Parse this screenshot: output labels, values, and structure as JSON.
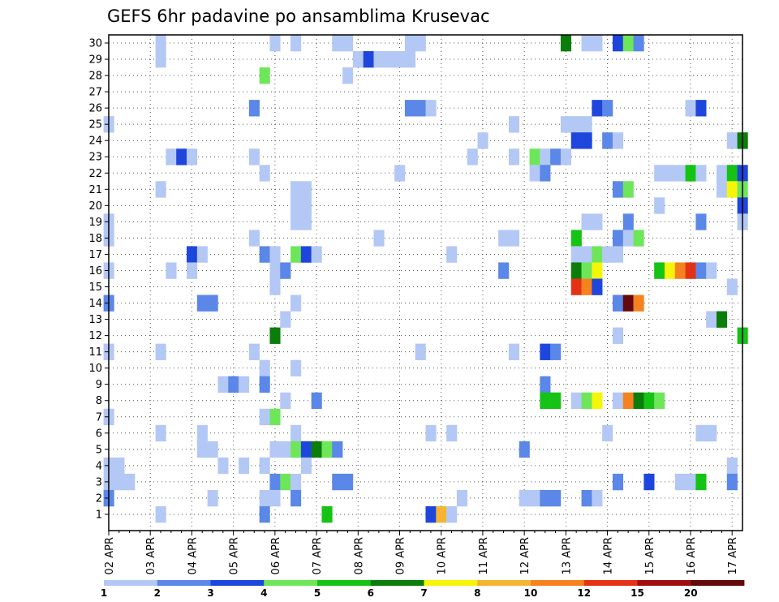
{
  "chart_data": {
    "type": "heatmap",
    "title": "GEFS 6hr padavine po ansamblima Krusevac",
    "xlabel": "",
    "ylabel": "",
    "x_tick_labels": [
      "02 APR",
      "03 APR",
      "04 APR",
      "05 APR",
      "06 APR",
      "07 APR",
      "08 APR",
      "09 APR",
      "10 APR",
      "11 APR",
      "12 APR",
      "13 APR",
      "14 APR",
      "15 APR",
      "16 APR",
      "17 APR"
    ],
    "y_tick_labels": [
      "1",
      "2",
      "3",
      "4",
      "5",
      "6",
      "7",
      "8",
      "9",
      "10",
      "11",
      "12",
      "13",
      "14",
      "15",
      "16",
      "17",
      "18",
      "19",
      "20",
      "21",
      "22",
      "23",
      "24",
      "25",
      "26",
      "27",
      "28",
      "29",
      "30"
    ],
    "time_steps_per_day": 4,
    "xlim": [
      0,
      61
    ],
    "ylim": [
      0,
      30
    ],
    "grid": true,
    "legend": {
      "position": "bottom",
      "labels": [
        "1",
        "2",
        "3",
        "4",
        "5",
        "6",
        "7",
        "8",
        "10",
        "12",
        "15",
        "20"
      ],
      "colors": [
        "#b4c8f5",
        "#5a87e8",
        "#1e46dc",
        "#6ee65a",
        "#14c314",
        "#0a7d0a",
        "#f5f50a",
        "#f5b432",
        "#f5821e",
        "#e63214",
        "#a00f0f",
        "#640a0a"
      ]
    },
    "cells": [
      {
        "t": 5,
        "m": 30,
        "v": 1
      },
      {
        "t": 16,
        "m": 30,
        "v": 1
      },
      {
        "t": 18,
        "m": 30,
        "v": 1
      },
      {
        "t": 22,
        "m": 30,
        "v": 1
      },
      {
        "t": 23,
        "m": 30,
        "v": 1
      },
      {
        "t": 29,
        "m": 30,
        "v": 1
      },
      {
        "t": 30,
        "m": 30,
        "v": 1
      },
      {
        "t": 44,
        "m": 30,
        "v": 6
      },
      {
        "t": 46,
        "m": 30,
        "v": 1
      },
      {
        "t": 47,
        "m": 30,
        "v": 1
      },
      {
        "t": 49,
        "m": 30,
        "v": 3
      },
      {
        "t": 50,
        "m": 30,
        "v": 4
      },
      {
        "t": 51,
        "m": 30,
        "v": 2
      },
      {
        "t": 5,
        "m": 29,
        "v": 1
      },
      {
        "t": 24,
        "m": 29,
        "v": 1
      },
      {
        "t": 25,
        "m": 29,
        "v": 3
      },
      {
        "t": 26,
        "m": 29,
        "v": 1
      },
      {
        "t": 27,
        "m": 29,
        "v": 1
      },
      {
        "t": 28,
        "m": 29,
        "v": 1
      },
      {
        "t": 29,
        "m": 29,
        "v": 1
      },
      {
        "t": 15,
        "m": 28,
        "v": 4
      },
      {
        "t": 23,
        "m": 28,
        "v": 1
      },
      {
        "t": 14,
        "m": 26,
        "v": 2
      },
      {
        "t": 29,
        "m": 26,
        "v": 2
      },
      {
        "t": 30,
        "m": 26,
        "v": 2
      },
      {
        "t": 31,
        "m": 26,
        "v": 1
      },
      {
        "t": 47,
        "m": 26,
        "v": 3
      },
      {
        "t": 48,
        "m": 26,
        "v": 2
      },
      {
        "t": 56,
        "m": 26,
        "v": 1
      },
      {
        "t": 57,
        "m": 26,
        "v": 3
      },
      {
        "t": 0,
        "m": 25,
        "v": 1
      },
      {
        "t": 39,
        "m": 25,
        "v": 1
      },
      {
        "t": 44,
        "m": 25,
        "v": 1
      },
      {
        "t": 45,
        "m": 25,
        "v": 1
      },
      {
        "t": 46,
        "m": 25,
        "v": 1
      },
      {
        "t": 36,
        "m": 24,
        "v": 1
      },
      {
        "t": 45,
        "m": 24,
        "v": 3
      },
      {
        "t": 46,
        "m": 24,
        "v": 3
      },
      {
        "t": 48,
        "m": 24,
        "v": 2
      },
      {
        "t": 49,
        "m": 24,
        "v": 1
      },
      {
        "t": 60,
        "m": 24,
        "v": 1
      },
      {
        "t": 61,
        "m": 24,
        "v": 6
      },
      {
        "t": 6,
        "m": 23,
        "v": 1
      },
      {
        "t": 7,
        "m": 23,
        "v": 3
      },
      {
        "t": 8,
        "m": 23,
        "v": 1
      },
      {
        "t": 14,
        "m": 23,
        "v": 1
      },
      {
        "t": 35,
        "m": 23,
        "v": 1
      },
      {
        "t": 39,
        "m": 23,
        "v": 1
      },
      {
        "t": 41,
        "m": 23,
        "v": 4
      },
      {
        "t": 42,
        "m": 23,
        "v": 1
      },
      {
        "t": 43,
        "m": 23,
        "v": 2
      },
      {
        "t": 44,
        "m": 23,
        "v": 1
      },
      {
        "t": 15,
        "m": 22,
        "v": 1
      },
      {
        "t": 28,
        "m": 22,
        "v": 1
      },
      {
        "t": 41,
        "m": 22,
        "v": 1
      },
      {
        "t": 42,
        "m": 22,
        "v": 2
      },
      {
        "t": 53,
        "m": 22,
        "v": 1
      },
      {
        "t": 54,
        "m": 22,
        "v": 1
      },
      {
        "t": 55,
        "m": 22,
        "v": 1
      },
      {
        "t": 56,
        "m": 22,
        "v": 5
      },
      {
        "t": 57,
        "m": 22,
        "v": 1
      },
      {
        "t": 59,
        "m": 22,
        "v": 1
      },
      {
        "t": 60,
        "m": 22,
        "v": 5
      },
      {
        "t": 61,
        "m": 22,
        "v": 3
      },
      {
        "t": 5,
        "m": 21,
        "v": 1
      },
      {
        "t": 18,
        "m": 21,
        "v": 1
      },
      {
        "t": 19,
        "m": 21,
        "v": 1
      },
      {
        "t": 49,
        "m": 21,
        "v": 2
      },
      {
        "t": 50,
        "m": 21,
        "v": 4
      },
      {
        "t": 59,
        "m": 21,
        "v": 1
      },
      {
        "t": 60,
        "m": 21,
        "v": 7
      },
      {
        "t": 61,
        "m": 21,
        "v": 4
      },
      {
        "t": 18,
        "m": 20,
        "v": 1
      },
      {
        "t": 19,
        "m": 20,
        "v": 1
      },
      {
        "t": 53,
        "m": 20,
        "v": 1
      },
      {
        "t": 61,
        "m": 20,
        "v": 3
      },
      {
        "t": 0,
        "m": 19,
        "v": 1
      },
      {
        "t": 18,
        "m": 19,
        "v": 1
      },
      {
        "t": 19,
        "m": 19,
        "v": 1
      },
      {
        "t": 46,
        "m": 19,
        "v": 1
      },
      {
        "t": 47,
        "m": 19,
        "v": 1
      },
      {
        "t": 50,
        "m": 19,
        "v": 2
      },
      {
        "t": 57,
        "m": 19,
        "v": 2
      },
      {
        "t": 61,
        "m": 19,
        "v": 1
      },
      {
        "t": 0,
        "m": 18,
        "v": 1
      },
      {
        "t": 14,
        "m": 18,
        "v": 1
      },
      {
        "t": 26,
        "m": 18,
        "v": 1
      },
      {
        "t": 38,
        "m": 18,
        "v": 1
      },
      {
        "t": 39,
        "m": 18,
        "v": 1
      },
      {
        "t": 45,
        "m": 18,
        "v": 5
      },
      {
        "t": 49,
        "m": 18,
        "v": 2
      },
      {
        "t": 50,
        "m": 18,
        "v": 1
      },
      {
        "t": 51,
        "m": 18,
        "v": 4
      },
      {
        "t": 8,
        "m": 17,
        "v": 3
      },
      {
        "t": 9,
        "m": 17,
        "v": 1
      },
      {
        "t": 15,
        "m": 17,
        "v": 2
      },
      {
        "t": 16,
        "m": 17,
        "v": 1
      },
      {
        "t": 18,
        "m": 17,
        "v": 4
      },
      {
        "t": 19,
        "m": 17,
        "v": 3
      },
      {
        "t": 20,
        "m": 17,
        "v": 1
      },
      {
        "t": 33,
        "m": 17,
        "v": 1
      },
      {
        "t": 45,
        "m": 17,
        "v": 1
      },
      {
        "t": 46,
        "m": 17,
        "v": 1
      },
      {
        "t": 47,
        "m": 17,
        "v": 4
      },
      {
        "t": 48,
        "m": 17,
        "v": 1
      },
      {
        "t": 49,
        "m": 17,
        "v": 1
      },
      {
        "t": 0,
        "m": 16,
        "v": 1
      },
      {
        "t": 6,
        "m": 16,
        "v": 1
      },
      {
        "t": 8,
        "m": 16,
        "v": 1
      },
      {
        "t": 16,
        "m": 16,
        "v": 1
      },
      {
        "t": 17,
        "m": 16,
        "v": 2
      },
      {
        "t": 38,
        "m": 16,
        "v": 2
      },
      {
        "t": 45,
        "m": 16,
        "v": 6
      },
      {
        "t": 46,
        "m": 16,
        "v": 4
      },
      {
        "t": 47,
        "m": 16,
        "v": 7
      },
      {
        "t": 53,
        "m": 16,
        "v": 5
      },
      {
        "t": 54,
        "m": 16,
        "v": 7
      },
      {
        "t": 55,
        "m": 16,
        "v": 10
      },
      {
        "t": 56,
        "m": 16,
        "v": 12
      },
      {
        "t": 57,
        "m": 16,
        "v": 2
      },
      {
        "t": 58,
        "m": 16,
        "v": 1
      },
      {
        "t": 16,
        "m": 15,
        "v": 1
      },
      {
        "t": 45,
        "m": 15,
        "v": 12
      },
      {
        "t": 46,
        "m": 15,
        "v": 10
      },
      {
        "t": 47,
        "m": 15,
        "v": 3
      },
      {
        "t": 60,
        "m": 15,
        "v": 1
      },
      {
        "t": 0,
        "m": 14,
        "v": 2
      },
      {
        "t": 9,
        "m": 14,
        "v": 2
      },
      {
        "t": 10,
        "m": 14,
        "v": 2
      },
      {
        "t": 18,
        "m": 14,
        "v": 1
      },
      {
        "t": 49,
        "m": 14,
        "v": 2
      },
      {
        "t": 50,
        "m": 14,
        "v": 20
      },
      {
        "t": 51,
        "m": 14,
        "v": 10
      },
      {
        "t": 17,
        "m": 13,
        "v": 1
      },
      {
        "t": 58,
        "m": 13,
        "v": 1
      },
      {
        "t": 59,
        "m": 13,
        "v": 6
      },
      {
        "t": 16,
        "m": 12,
        "v": 6
      },
      {
        "t": 49,
        "m": 12,
        "v": 1
      },
      {
        "t": 61,
        "m": 12,
        "v": 5
      },
      {
        "t": 0,
        "m": 11,
        "v": 1
      },
      {
        "t": 5,
        "m": 11,
        "v": 1
      },
      {
        "t": 14,
        "m": 11,
        "v": 1
      },
      {
        "t": 30,
        "m": 11,
        "v": 1
      },
      {
        "t": 39,
        "m": 11,
        "v": 1
      },
      {
        "t": 42,
        "m": 11,
        "v": 3
      },
      {
        "t": 43,
        "m": 11,
        "v": 2
      },
      {
        "t": 15,
        "m": 10,
        "v": 1
      },
      {
        "t": 18,
        "m": 10,
        "v": 1
      },
      {
        "t": 11,
        "m": 9,
        "v": 1
      },
      {
        "t": 12,
        "m": 9,
        "v": 2
      },
      {
        "t": 13,
        "m": 9,
        "v": 1
      },
      {
        "t": 15,
        "m": 9,
        "v": 2
      },
      {
        "t": 42,
        "m": 9,
        "v": 2
      },
      {
        "t": 17,
        "m": 8,
        "v": 1
      },
      {
        "t": 20,
        "m": 8,
        "v": 2
      },
      {
        "t": 42,
        "m": 8,
        "v": 5
      },
      {
        "t": 43,
        "m": 8,
        "v": 5
      },
      {
        "t": 45,
        "m": 8,
        "v": 1
      },
      {
        "t": 46,
        "m": 8,
        "v": 4
      },
      {
        "t": 47,
        "m": 8,
        "v": 7
      },
      {
        "t": 49,
        "m": 8,
        "v": 1
      },
      {
        "t": 50,
        "m": 8,
        "v": 10
      },
      {
        "t": 51,
        "m": 8,
        "v": 6
      },
      {
        "t": 52,
        "m": 8,
        "v": 5
      },
      {
        "t": 53,
        "m": 8,
        "v": 4
      },
      {
        "t": 0,
        "m": 7,
        "v": 1
      },
      {
        "t": 15,
        "m": 7,
        "v": 1
      },
      {
        "t": 16,
        "m": 7,
        "v": 4
      },
      {
        "t": 5,
        "m": 6,
        "v": 1
      },
      {
        "t": 9,
        "m": 6,
        "v": 1
      },
      {
        "t": 18,
        "m": 6,
        "v": 1
      },
      {
        "t": 31,
        "m": 6,
        "v": 1
      },
      {
        "t": 33,
        "m": 6,
        "v": 1
      },
      {
        "t": 48,
        "m": 6,
        "v": 1
      },
      {
        "t": 57,
        "m": 6,
        "v": 1
      },
      {
        "t": 58,
        "m": 6,
        "v": 1
      },
      {
        "t": 9,
        "m": 5,
        "v": 1
      },
      {
        "t": 10,
        "m": 5,
        "v": 1
      },
      {
        "t": 16,
        "m": 5,
        "v": 1
      },
      {
        "t": 17,
        "m": 5,
        "v": 1
      },
      {
        "t": 18,
        "m": 5,
        "v": 4
      },
      {
        "t": 19,
        "m": 5,
        "v": 3
      },
      {
        "t": 20,
        "m": 5,
        "v": 6
      },
      {
        "t": 21,
        "m": 5,
        "v": 4
      },
      {
        "t": 22,
        "m": 5,
        "v": 2
      },
      {
        "t": 40,
        "m": 5,
        "v": 2
      },
      {
        "t": 0,
        "m": 4,
        "v": 1
      },
      {
        "t": 1,
        "m": 4,
        "v": 1
      },
      {
        "t": 11,
        "m": 4,
        "v": 1
      },
      {
        "t": 13,
        "m": 4,
        "v": 1
      },
      {
        "t": 15,
        "m": 4,
        "v": 1
      },
      {
        "t": 19,
        "m": 4,
        "v": 1
      },
      {
        "t": 60,
        "m": 4,
        "v": 1
      },
      {
        "t": 0,
        "m": 3,
        "v": 1
      },
      {
        "t": 1,
        "m": 3,
        "v": 1
      },
      {
        "t": 2,
        "m": 3,
        "v": 1
      },
      {
        "t": 16,
        "m": 3,
        "v": 2
      },
      {
        "t": 17,
        "m": 3,
        "v": 4
      },
      {
        "t": 18,
        "m": 3,
        "v": 1
      },
      {
        "t": 22,
        "m": 3,
        "v": 2
      },
      {
        "t": 23,
        "m": 3,
        "v": 2
      },
      {
        "t": 49,
        "m": 3,
        "v": 2
      },
      {
        "t": 52,
        "m": 3,
        "v": 3
      },
      {
        "t": 55,
        "m": 3,
        "v": 1
      },
      {
        "t": 56,
        "m": 3,
        "v": 1
      },
      {
        "t": 57,
        "m": 3,
        "v": 5
      },
      {
        "t": 60,
        "m": 3,
        "v": 2
      },
      {
        "t": 0,
        "m": 2,
        "v": 2
      },
      {
        "t": 10,
        "m": 2,
        "v": 1
      },
      {
        "t": 15,
        "m": 2,
        "v": 1
      },
      {
        "t": 16,
        "m": 2,
        "v": 1
      },
      {
        "t": 18,
        "m": 2,
        "v": 2
      },
      {
        "t": 34,
        "m": 2,
        "v": 1
      },
      {
        "t": 40,
        "m": 2,
        "v": 1
      },
      {
        "t": 41,
        "m": 2,
        "v": 1
      },
      {
        "t": 42,
        "m": 2,
        "v": 2
      },
      {
        "t": 43,
        "m": 2,
        "v": 2
      },
      {
        "t": 46,
        "m": 2,
        "v": 2
      },
      {
        "t": 47,
        "m": 2,
        "v": 1
      },
      {
        "t": 5,
        "m": 1,
        "v": 1
      },
      {
        "t": 15,
        "m": 1,
        "v": 2
      },
      {
        "t": 21,
        "m": 1,
        "v": 5
      },
      {
        "t": 31,
        "m": 1,
        "v": 3
      },
      {
        "t": 32,
        "m": 1,
        "v": 8
      },
      {
        "t": 33,
        "m": 1,
        "v": 1
      }
    ]
  }
}
